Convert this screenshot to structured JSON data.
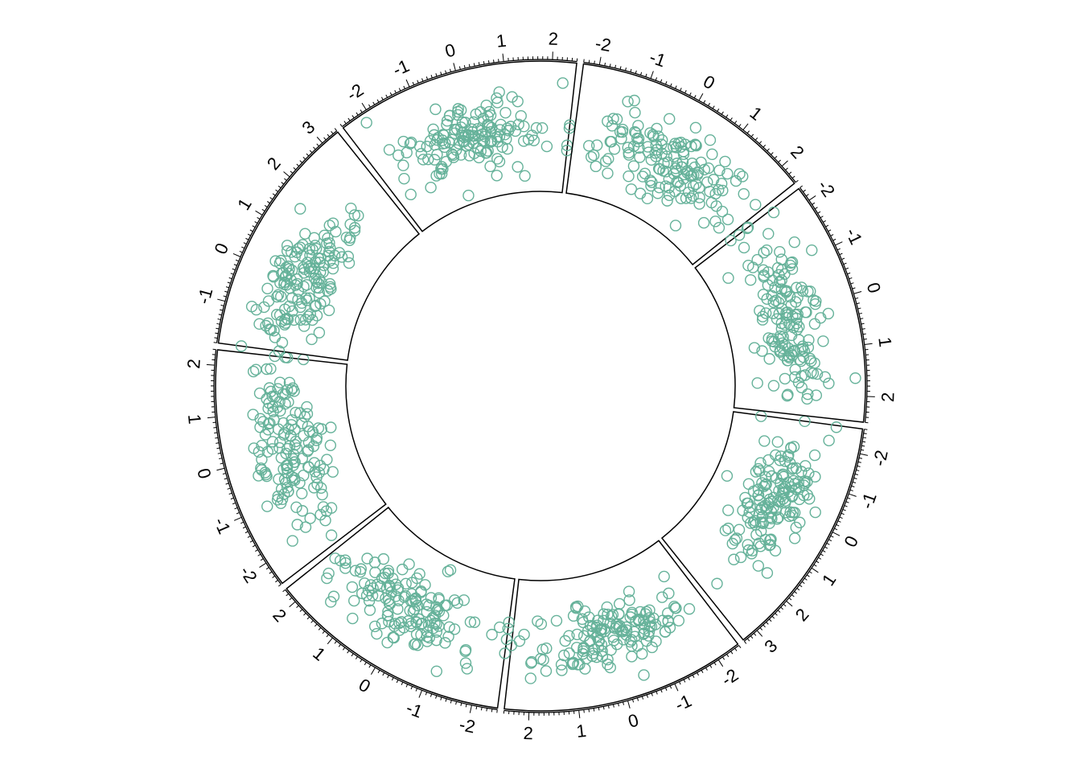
{
  "chart_data": {
    "type": "scatter",
    "layout": "circular",
    "title": "",
    "point_color": "#66b29a",
    "point_shape": "open-circle",
    "grid": false,
    "axis_labels": [
      "-2",
      "-1",
      "0",
      "1",
      "2",
      "3"
    ],
    "sectors": [
      {
        "id": 1,
        "xlim": [
          -2.6,
          3.4
        ],
        "points_per_sector": 150,
        "x": [
          -0.5,
          0.3,
          1.1,
          -1.2,
          0.8,
          0.1,
          -0.9,
          1.6,
          0.4,
          -0.2,
          2.1,
          0.9,
          -1.7,
          0.6,
          0.0,
          1.3,
          -0.6,
          0.2,
          0.7,
          -1.0
        ],
        "y": [
          0.2,
          -0.4,
          1.1,
          0.5,
          -0.8,
          0.9,
          -0.1,
          0.3,
          -1.2,
          0.6,
          0.0,
          -0.5,
          1.3,
          0.4,
          -0.9,
          0.7,
          1.6,
          -0.3,
          0.1,
          -1.5
        ]
      },
      {
        "id": 2,
        "xlim": [
          -2.5,
          2.5
        ],
        "points_per_sector": 150,
        "x": [
          -0.8,
          0.2,
          -1.3,
          0.6,
          -0.4,
          1.2,
          -0.1,
          0.9,
          -1.8,
          0.4,
          1.7,
          -0.6,
          0.0,
          0.7,
          -1.1,
          0.3,
          2.2,
          -0.3,
          0.5,
          -0.9
        ],
        "y": [
          0.5,
          -0.3,
          0.9,
          -1.1,
          0.2,
          0.6,
          -0.7,
          1.2,
          0.0,
          -0.4,
          0.8,
          1.5,
          -1.3,
          0.3,
          -0.2,
          1.0,
          -0.6,
          0.4,
          -1.7,
          0.7
        ]
      },
      {
        "id": 3,
        "xlim": [
          -2.5,
          2.3
        ],
        "points_per_sector": 150,
        "x": [
          -0.3,
          0.5,
          -1.1,
          0.9,
          0.1,
          -0.7,
          1.4,
          -0.2,
          0.6,
          -1.6,
          0.3,
          1.9,
          -0.5,
          0.0,
          0.8,
          -1.2,
          0.4,
          -0.8,
          1.1,
          -0.1
        ],
        "y": [
          0.4,
          -0.6,
          0.8,
          -0.2,
          1.2,
          0.0,
          -1.0,
          0.6,
          -0.3,
          0.9,
          -1.4,
          0.2,
          1.5,
          -0.7,
          0.3,
          -0.1,
          0.7,
          -1.2,
          0.1,
          1.0
        ]
      },
      {
        "id": 4,
        "xlim": [
          -2.5,
          2.3
        ],
        "points_per_sector": 150,
        "x": [
          0.2,
          -0.6,
          1.0,
          -1.3,
          0.5,
          -0.1,
          0.8,
          -0.9,
          1.5,
          -0.3,
          0.1,
          -1.8,
          0.7,
          1.2,
          -0.4,
          0.3,
          -0.7,
          2.0,
          -0.2,
          0.6
        ],
        "y": [
          -0.5,
          0.7,
          0.1,
          -0.9,
          1.1,
          -0.2,
          0.5,
          1.4,
          -0.6,
          0.3,
          -1.2,
          0.8,
          0.0,
          -0.4,
          1.6,
          -1.0,
          0.2,
          0.6,
          -0.1,
          0.9
        ]
      },
      {
        "id": 5,
        "xlim": [
          -1.9,
          3.4
        ],
        "points_per_sector": 150,
        "x": [
          0.4,
          -0.3,
          1.2,
          0.0,
          0.8,
          -0.8,
          1.7,
          0.2,
          -0.5,
          0.6,
          2.4,
          -1.1,
          0.9,
          0.1,
          1.4,
          -0.2,
          0.5,
          -1.4,
          1.0,
          0.3
        ],
        "y": [
          0.3,
          -0.7,
          0.6,
          1.0,
          -0.2,
          0.4,
          -1.1,
          0.8,
          -0.4,
          1.3,
          0.0,
          -0.9,
          0.5,
          -1.5,
          0.2,
          0.9,
          -0.3,
          0.7,
          -0.6,
          1.6
        ]
      },
      {
        "id": 6,
        "xlim": [
          -2.6,
          2.5
        ],
        "points_per_sector": 150,
        "x": [
          -0.4,
          0.6,
          -1.0,
          0.2,
          1.3,
          -0.7,
          0.0,
          0.9,
          -1.5,
          0.4,
          -0.2,
          1.8,
          -0.9,
          0.7,
          0.1,
          -1.2,
          0.5,
          -0.5,
          1.1,
          -0.1
        ],
        "y": [
          0.6,
          -0.4,
          0.2,
          1.1,
          -0.8,
          0.5,
          -1.3,
          0.0,
          0.9,
          -0.6,
          1.5,
          -0.1,
          0.4,
          -1.0,
          0.7,
          0.3,
          -1.6,
          1.2,
          -0.2,
          0.8
        ]
      },
      {
        "id": 7,
        "xlim": [
          -2.3,
          2.4
        ],
        "points_per_sector": 150,
        "x": [
          0.3,
          -0.5,
          0.9,
          -1.2,
          0.1,
          1.5,
          -0.3,
          0.6,
          -0.9,
          1.1,
          -1.7,
          0.4,
          0.0,
          -0.6,
          1.9,
          -0.1,
          0.7,
          -1.4,
          0.2,
          0.8
        ],
        "y": [
          -0.2,
          0.8,
          -0.9,
          0.4,
          1.2,
          -0.5,
          0.0,
          -1.3,
          0.6,
          0.2,
          -0.7,
          1.5,
          -0.3,
          0.9,
          -1.1,
          0.5,
          -0.1,
          1.0,
          -1.6,
          0.3
        ]
      },
      {
        "id": 8,
        "xlim": [
          -2.3,
          2.5
        ],
        "points_per_sector": 150,
        "x": [
          -0.2,
          0.7,
          -1.1,
          0.4,
          1.0,
          -0.6,
          0.1,
          -1.5,
          0.9,
          -0.4,
          1.6,
          0.2,
          -0.8,
          0.5,
          -1.9,
          1.2,
          -0.1,
          0.3,
          -0.7,
          2.1
        ],
        "y": [
          0.5,
          -0.8,
          0.3,
          1.2,
          -0.4,
          0.0,
          0.9,
          -1.1,
          0.6,
          -0.2,
          1.4,
          -0.6,
          0.2,
          -1.5,
          0.8,
          0.1,
          -0.9,
          1.6,
          -0.3,
          0.4
        ]
      }
    ]
  }
}
